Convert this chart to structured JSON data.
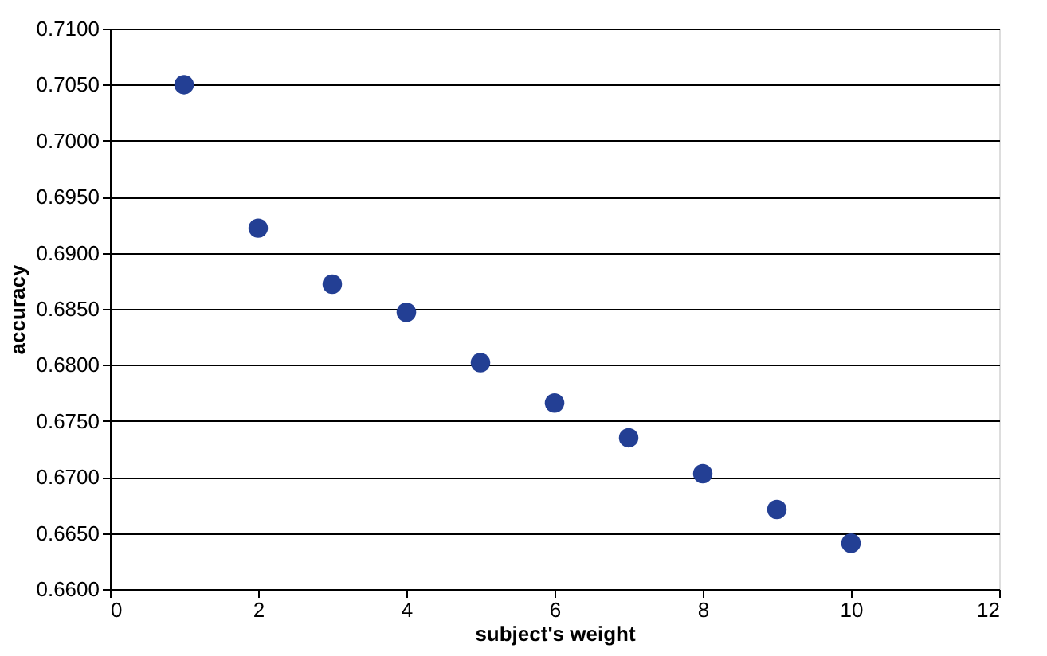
{
  "chart_data": {
    "type": "scatter",
    "xlabel": "subject's weight",
    "ylabel": "accuracy",
    "x": [
      1,
      2,
      3,
      4,
      5,
      6,
      7,
      8,
      9,
      10
    ],
    "series": [
      {
        "color": "#233f94",
        "values": [
          0.705,
          0.6922,
          0.6872,
          0.6847,
          0.6802,
          0.6766,
          0.6735,
          0.6703,
          0.6671,
          0.6641
        ]
      }
    ],
    "xlim": [
      0,
      12
    ],
    "xticks": [
      0,
      2,
      4,
      6,
      8,
      10,
      12
    ],
    "ylim": [
      0.66,
      0.71
    ],
    "yticks": [
      {
        "value": 0.66,
        "label": "0.6600"
      },
      {
        "value": 0.665,
        "label": "0.6650"
      },
      {
        "value": 0.67,
        "label": "0.6700"
      },
      {
        "value": 0.675,
        "label": "0.6750"
      },
      {
        "value": 0.68,
        "label": "0.6800"
      },
      {
        "value": 0.685,
        "label": "0.6850"
      },
      {
        "value": 0.69,
        "label": "0.6900"
      },
      {
        "value": 0.695,
        "label": "0.6950"
      },
      {
        "value": 0.7,
        "label": "0.7000"
      },
      {
        "value": 0.705,
        "label": "0.7050"
      },
      {
        "value": 0.71,
        "label": "0.7100"
      }
    ],
    "grid": "y",
    "marker": "circle"
  }
}
